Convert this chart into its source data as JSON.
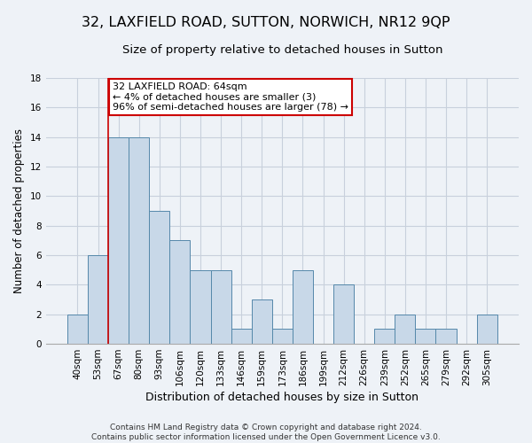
{
  "title": "32, LAXFIELD ROAD, SUTTON, NORWICH, NR12 9QP",
  "subtitle": "Size of property relative to detached houses in Sutton",
  "xlabel": "Distribution of detached houses by size in Sutton",
  "ylabel": "Number of detached properties",
  "categories": [
    "40sqm",
    "53sqm",
    "67sqm",
    "80sqm",
    "93sqm",
    "106sqm",
    "120sqm",
    "133sqm",
    "146sqm",
    "159sqm",
    "173sqm",
    "186sqm",
    "199sqm",
    "212sqm",
    "226sqm",
    "239sqm",
    "252sqm",
    "265sqm",
    "279sqm",
    "292sqm",
    "305sqm"
  ],
  "values": [
    2,
    6,
    14,
    14,
    9,
    7,
    5,
    5,
    1,
    3,
    1,
    5,
    0,
    4,
    0,
    1,
    2,
    1,
    1,
    0,
    2
  ],
  "bar_color": "#c8d8e8",
  "bar_edgecolor": "#5588aa",
  "vline_color": "#cc0000",
  "vline_x": 1.5,
  "annotation_text": "32 LAXFIELD ROAD: 64sqm\n← 4% of detached houses are smaller (3)\n96% of semi-detached houses are larger (78) →",
  "annotation_box_color": "#ffffff",
  "annotation_box_edgecolor": "#cc0000",
  "ylim": [
    0,
    18
  ],
  "yticks": [
    0,
    2,
    4,
    6,
    8,
    10,
    12,
    14,
    16,
    18
  ],
  "background_color": "#eef2f7",
  "grid_color": "#c8d0dc",
  "footer": "Contains HM Land Registry data © Crown copyright and database right 2024.\nContains public sector information licensed under the Open Government Licence v3.0.",
  "title_fontsize": 11.5,
  "subtitle_fontsize": 9.5,
  "xlabel_fontsize": 9,
  "ylabel_fontsize": 8.5,
  "tick_fontsize": 7.5,
  "annotation_fontsize": 8,
  "footer_fontsize": 6.5
}
